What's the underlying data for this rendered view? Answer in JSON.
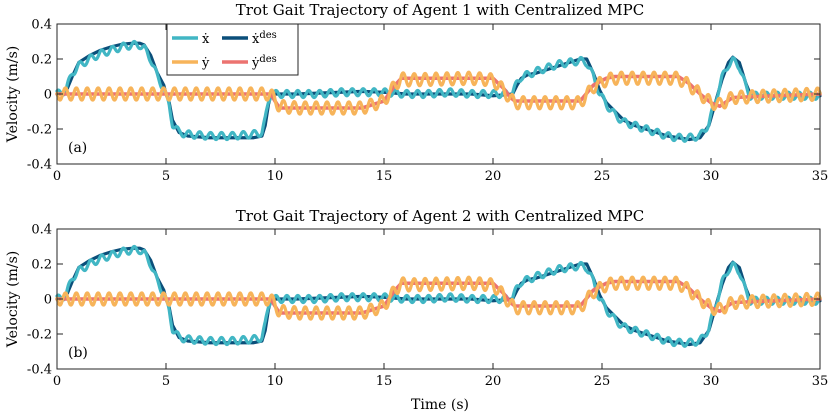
{
  "chart_data": [
    {
      "type": "line",
      "panel": "(a)",
      "title": "Trot Gait Trajectory of Agent 1 with Centralized MPC",
      "xlabel": "",
      "ylabel": "Velocity (m/s)",
      "xlim": [
        0,
        35
      ],
      "ylim": [
        -0.4,
        0.4
      ],
      "xticks": [
        "0",
        "5",
        "10",
        "15",
        "20",
        "25",
        "30",
        "35"
      ],
      "yticks": [
        "-0.4",
        "-0.2",
        "0",
        "0.2",
        "0.4"
      ],
      "legend": {
        "position": "top-left",
        "entries": [
          "ẋ",
          "ẋ^des",
          "ẏ",
          "ẏ^des"
        ]
      },
      "series": [
        {
          "name": "xdot_des",
          "label": "ẋ^des",
          "color": "#0b4f7a",
          "x": [
            0,
            0.4,
            0.7,
            1.0,
            1.5,
            2.0,
            2.5,
            3.0,
            3.5,
            3.8,
            4.0,
            4.3,
            4.6,
            4.9,
            5.0,
            5.15,
            5.3,
            5.6,
            6.0,
            7.0,
            8.0,
            9.0,
            9.4,
            9.55,
            9.7,
            9.8,
            10.0,
            11.0,
            12.0,
            13.0,
            14.0,
            15.0,
            16.0,
            17.0,
            18.0,
            19.0,
            20.0,
            20.5,
            20.9,
            21.1,
            21.3,
            21.6,
            22.0,
            22.5,
            23.0,
            23.5,
            24.0,
            24.3,
            24.6,
            24.9,
            25.2,
            25.6,
            26.0,
            26.5,
            27.0,
            27.5,
            28.0,
            28.5,
            29.0,
            29.5,
            29.9,
            30.2,
            30.5,
            30.8,
            31.0,
            31.3,
            31.6,
            31.8,
            32.0,
            32.2,
            33.0,
            34.0,
            35.0
          ],
          "values": [
            0.0,
            0.01,
            0.1,
            0.18,
            0.22,
            0.25,
            0.27,
            0.285,
            0.29,
            0.29,
            0.28,
            0.22,
            0.12,
            0.05,
            0.0,
            -0.05,
            -0.15,
            -0.22,
            -0.24,
            -0.25,
            -0.25,
            -0.25,
            -0.24,
            -0.18,
            -0.06,
            -0.01,
            0.0,
            0.0,
            0.005,
            0.01,
            0.015,
            0.01,
            0.0,
            0.0,
            0.0,
            0.0,
            -0.01,
            -0.005,
            0.0,
            0.05,
            0.09,
            0.11,
            0.12,
            0.14,
            0.16,
            0.18,
            0.2,
            0.2,
            0.12,
            0.02,
            -0.05,
            -0.1,
            -0.15,
            -0.18,
            -0.2,
            -0.22,
            -0.24,
            -0.25,
            -0.26,
            -0.25,
            -0.18,
            -0.05,
            0.08,
            0.18,
            0.21,
            0.18,
            0.06,
            0.0,
            -0.01,
            -0.01,
            -0.01,
            -0.01,
            -0.01
          ]
        },
        {
          "name": "xdot",
          "label": "ẋ",
          "color": "#41b6c4",
          "x": [
            0,
            0.4,
            0.7,
            1.0,
            1.5,
            2.0,
            2.5,
            3.0,
            3.5,
            3.8,
            4.0,
            4.3,
            4.6,
            4.9,
            5.0,
            5.15,
            5.3,
            5.6,
            6.0,
            7.0,
            8.0,
            9.0,
            9.4,
            9.55,
            9.7,
            9.8,
            10.0,
            11.0,
            12.0,
            13.0,
            14.0,
            15.0,
            16.0,
            17.0,
            18.0,
            19.0,
            20.0,
            20.5,
            20.9,
            21.1,
            21.3,
            21.6,
            22.0,
            22.5,
            23.0,
            23.5,
            24.0,
            24.3,
            24.6,
            24.9,
            25.2,
            25.6,
            26.0,
            26.5,
            27.0,
            27.5,
            28.0,
            28.5,
            29.0,
            29.5,
            29.9,
            30.2,
            30.5,
            30.8,
            31.0,
            31.3,
            31.6,
            31.8,
            32.0,
            32.2,
            33.0,
            34.0,
            35.0
          ],
          "values": [
            0.0,
            0.02,
            0.12,
            0.16,
            0.2,
            0.23,
            0.25,
            0.27,
            0.28,
            0.28,
            0.26,
            0.2,
            0.1,
            0.03,
            -0.01,
            -0.07,
            -0.17,
            -0.22,
            -0.23,
            -0.24,
            -0.24,
            -0.23,
            -0.22,
            -0.15,
            -0.04,
            0.0,
            0.0,
            0.0,
            0.0,
            0.01,
            0.01,
            0.01,
            0.0,
            0.0,
            0.01,
            0.0,
            0.0,
            0.0,
            0.01,
            0.06,
            0.1,
            0.11,
            0.13,
            0.15,
            0.17,
            0.18,
            0.19,
            0.18,
            0.1,
            0.0,
            -0.06,
            -0.12,
            -0.16,
            -0.18,
            -0.2,
            -0.22,
            -0.24,
            -0.25,
            -0.25,
            -0.24,
            -0.17,
            -0.04,
            0.09,
            0.17,
            0.19,
            0.16,
            0.04,
            -0.01,
            -0.01,
            -0.01,
            -0.01,
            -0.01,
            -0.01
          ],
          "oscillation_amplitude": 0.02,
          "oscillation_period_s": 0.5
        },
        {
          "name": "ydot_des",
          "label": "ẏ^des",
          "color": "#ec7370",
          "x": [
            0,
            9.8,
            10.2,
            11.0,
            14.0,
            15.0,
            15.5,
            15.8,
            16.0,
            19.0,
            20.0,
            20.5,
            20.8,
            21.0,
            24.0,
            24.6,
            25.2,
            25.6,
            28.5,
            29.0,
            29.5,
            30.0,
            30.4,
            31.0,
            35.0
          ],
          "values": [
            0.0,
            0.0,
            -0.08,
            -0.08,
            -0.08,
            -0.04,
            0.05,
            0.09,
            0.09,
            0.09,
            0.09,
            0.03,
            -0.02,
            -0.04,
            -0.04,
            0.05,
            0.09,
            0.1,
            0.1,
            0.06,
            0.0,
            -0.05,
            -0.07,
            -0.02,
            0.0
          ]
        },
        {
          "name": "ydot",
          "label": "ẏ",
          "color": "#f7b45a",
          "x": [
            0,
            9.8,
            10.2,
            11.0,
            14.0,
            15.0,
            15.5,
            15.8,
            16.0,
            19.0,
            20.0,
            20.5,
            20.8,
            21.0,
            24.0,
            24.6,
            25.2,
            25.6,
            28.5,
            29.0,
            29.5,
            30.0,
            30.4,
            31.0,
            35.0
          ],
          "values": [
            0.0,
            0.0,
            -0.07,
            -0.08,
            -0.08,
            -0.04,
            0.05,
            0.09,
            0.08,
            0.09,
            0.08,
            0.02,
            -0.03,
            -0.05,
            -0.05,
            0.04,
            0.08,
            0.09,
            0.09,
            0.05,
            0.0,
            -0.05,
            -0.06,
            -0.02,
            0.0
          ],
          "oscillation_amplitude": 0.035,
          "oscillation_period_s": 0.5
        }
      ]
    },
    {
      "type": "line",
      "panel": "(b)",
      "title": "Trot Gait Trajectory of Agent 2 with Centralized MPC",
      "xlabel": "Time (s)",
      "ylabel": "Velocity (m/s)",
      "xlim": [
        0,
        35
      ],
      "ylim": [
        -0.4,
        0.4
      ],
      "xticks": [
        "0",
        "5",
        "10",
        "15",
        "20",
        "25",
        "30",
        "35"
      ],
      "yticks": [
        "-0.4",
        "-0.2",
        "0",
        "0.2",
        "0.4"
      ],
      "series": [
        {
          "name": "xdot_des",
          "label": "ẋ^des",
          "color": "#0b4f7a",
          "x": [
            0,
            0.4,
            0.7,
            1.0,
            1.5,
            2.0,
            2.5,
            3.0,
            3.5,
            3.8,
            4.0,
            4.3,
            4.6,
            4.9,
            5.0,
            5.15,
            5.3,
            5.6,
            6.0,
            7.0,
            8.0,
            9.0,
            9.4,
            9.55,
            9.7,
            9.8,
            10.0,
            11.0,
            12.0,
            13.0,
            14.0,
            15.0,
            16.0,
            17.0,
            18.0,
            19.0,
            20.0,
            20.5,
            20.9,
            21.1,
            21.3,
            21.6,
            22.0,
            22.5,
            23.0,
            23.5,
            24.0,
            24.3,
            24.6,
            24.9,
            25.2,
            25.6,
            26.0,
            26.5,
            27.0,
            27.5,
            28.0,
            28.5,
            29.0,
            29.5,
            29.9,
            30.2,
            30.5,
            30.8,
            31.0,
            31.3,
            31.6,
            31.8,
            32.0,
            32.2,
            33.0,
            34.0,
            35.0
          ],
          "values": [
            0.0,
            0.01,
            0.1,
            0.18,
            0.22,
            0.25,
            0.27,
            0.285,
            0.29,
            0.29,
            0.28,
            0.22,
            0.12,
            0.05,
            0.0,
            -0.05,
            -0.15,
            -0.22,
            -0.24,
            -0.25,
            -0.25,
            -0.25,
            -0.24,
            -0.18,
            -0.06,
            -0.01,
            0.0,
            0.0,
            0.005,
            0.01,
            0.015,
            0.01,
            0.0,
            0.0,
            0.0,
            0.0,
            -0.01,
            -0.005,
            0.0,
            0.05,
            0.09,
            0.11,
            0.12,
            0.14,
            0.16,
            0.18,
            0.2,
            0.2,
            0.12,
            0.02,
            -0.05,
            -0.1,
            -0.15,
            -0.18,
            -0.2,
            -0.22,
            -0.24,
            -0.25,
            -0.26,
            -0.25,
            -0.18,
            -0.05,
            0.08,
            0.18,
            0.21,
            0.18,
            0.06,
            0.0,
            -0.01,
            -0.01,
            -0.01,
            -0.01,
            -0.01
          ]
        },
        {
          "name": "xdot",
          "label": "ẋ",
          "color": "#41b6c4",
          "x": [
            0,
            0.4,
            0.7,
            1.0,
            1.5,
            2.0,
            2.5,
            3.0,
            3.5,
            3.8,
            4.0,
            4.3,
            4.6,
            4.9,
            5.0,
            5.15,
            5.3,
            5.6,
            6.0,
            7.0,
            8.0,
            9.0,
            9.4,
            9.55,
            9.7,
            9.8,
            10.0,
            11.0,
            12.0,
            13.0,
            14.0,
            15.0,
            16.0,
            17.0,
            18.0,
            19.0,
            20.0,
            20.5,
            20.9,
            21.1,
            21.3,
            21.6,
            22.0,
            22.5,
            23.0,
            23.5,
            24.0,
            24.3,
            24.6,
            24.9,
            25.2,
            25.6,
            26.0,
            26.5,
            27.0,
            27.5,
            28.0,
            28.5,
            29.0,
            29.5,
            29.9,
            30.2,
            30.5,
            30.8,
            31.0,
            31.3,
            31.6,
            31.8,
            32.0,
            32.2,
            33.0,
            34.0,
            35.0
          ],
          "values": [
            0.0,
            0.02,
            0.12,
            0.16,
            0.2,
            0.23,
            0.25,
            0.27,
            0.28,
            0.28,
            0.26,
            0.2,
            0.1,
            0.03,
            -0.01,
            -0.07,
            -0.17,
            -0.22,
            -0.23,
            -0.24,
            -0.24,
            -0.23,
            -0.22,
            -0.15,
            -0.04,
            0.0,
            0.0,
            0.0,
            0.0,
            0.01,
            0.01,
            0.01,
            0.0,
            0.0,
            0.01,
            0.0,
            0.0,
            0.0,
            0.01,
            0.06,
            0.1,
            0.11,
            0.13,
            0.15,
            0.17,
            0.18,
            0.19,
            0.18,
            0.1,
            0.0,
            -0.06,
            -0.12,
            -0.16,
            -0.18,
            -0.2,
            -0.22,
            -0.24,
            -0.25,
            -0.25,
            -0.24,
            -0.17,
            -0.04,
            0.09,
            0.17,
            0.19,
            0.16,
            0.04,
            -0.01,
            -0.01,
            -0.01,
            -0.01,
            -0.01,
            -0.01
          ],
          "oscillation_amplitude": 0.02,
          "oscillation_period_s": 0.5
        },
        {
          "name": "ydot_des",
          "label": "ẏ^des",
          "color": "#ec7370",
          "x": [
            0,
            9.8,
            10.2,
            11.0,
            14.0,
            15.0,
            15.5,
            15.8,
            16.0,
            19.0,
            20.0,
            20.5,
            20.8,
            21.0,
            24.0,
            24.6,
            25.2,
            25.6,
            28.5,
            29.0,
            29.5,
            30.0,
            30.4,
            31.0,
            35.0
          ],
          "values": [
            0.0,
            0.0,
            -0.08,
            -0.08,
            -0.08,
            -0.04,
            0.05,
            0.09,
            0.09,
            0.09,
            0.09,
            0.03,
            -0.02,
            -0.04,
            -0.04,
            0.05,
            0.09,
            0.1,
            0.1,
            0.06,
            0.0,
            -0.05,
            -0.07,
            -0.02,
            0.0
          ]
        },
        {
          "name": "ydot",
          "label": "ẏ",
          "color": "#f7b45a",
          "x": [
            0,
            9.8,
            10.2,
            11.0,
            14.0,
            15.0,
            15.5,
            15.8,
            16.0,
            19.0,
            20.0,
            20.5,
            20.8,
            21.0,
            24.0,
            24.6,
            25.2,
            25.6,
            28.5,
            29.0,
            29.5,
            30.0,
            30.4,
            31.0,
            35.0
          ],
          "values": [
            0.0,
            0.0,
            -0.07,
            -0.08,
            -0.08,
            -0.04,
            0.05,
            0.09,
            0.08,
            0.09,
            0.08,
            0.02,
            -0.03,
            -0.05,
            -0.05,
            0.04,
            0.08,
            0.09,
            0.09,
            0.05,
            0.0,
            -0.05,
            -0.06,
            -0.02,
            0.0
          ],
          "oscillation_amplitude": 0.035,
          "oscillation_period_s": 0.5
        }
      ]
    }
  ]
}
